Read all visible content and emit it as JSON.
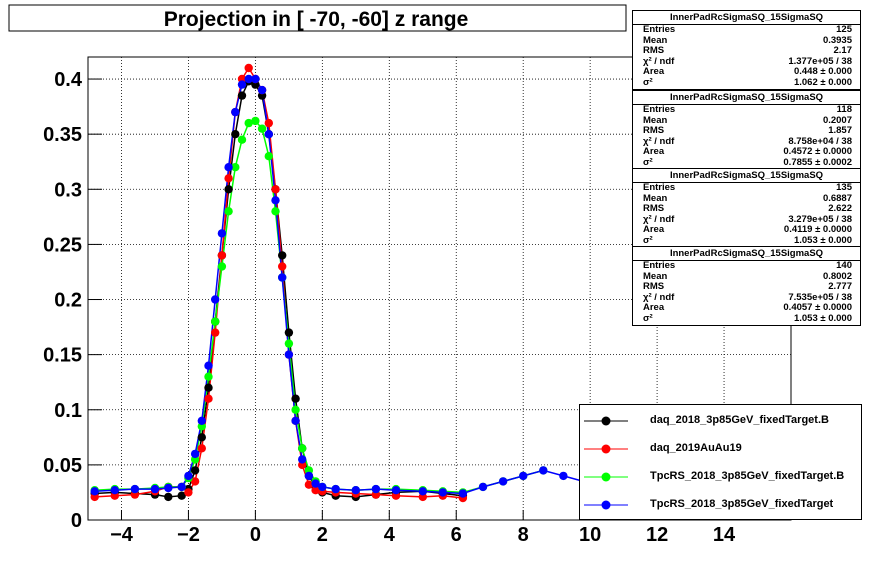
{
  "chart_data": {
    "type": "scatter",
    "title": "Projection in [ -70, -60] z range",
    "xlim": [
      -5,
      16
    ],
    "ylim": [
      0,
      0.42
    ],
    "x_ticks": [
      -4,
      -2,
      0,
      2,
      4,
      6,
      8,
      10,
      12,
      14
    ],
    "y_ticks": [
      0,
      0.05,
      0.1,
      0.15,
      0.2,
      0.25,
      0.3,
      0.35,
      0.4
    ],
    "grid": true,
    "legend_position": "bottom-right",
    "series": [
      {
        "name": "daq_2018_3p85GeV_fixedTarget.B",
        "color": "#000000",
        "x": [
          -4.8,
          -4.2,
          -3.6,
          -3.0,
          -2.6,
          -2.2,
          -2.0,
          -1.8,
          -1.6,
          -1.4,
          -1.2,
          -1.0,
          -0.8,
          -0.6,
          -0.4,
          -0.2,
          0.0,
          0.2,
          0.4,
          0.6,
          0.8,
          1.0,
          1.2,
          1.4,
          1.6,
          1.8,
          2.0,
          2.4,
          3.0,
          3.6,
          4.2,
          5.0,
          5.6,
          6.2
        ],
        "y": [
          0.024,
          0.025,
          0.024,
          0.023,
          0.021,
          0.022,
          0.028,
          0.045,
          0.075,
          0.12,
          0.18,
          0.24,
          0.3,
          0.35,
          0.385,
          0.398,
          0.395,
          0.385,
          0.35,
          0.3,
          0.24,
          0.17,
          0.11,
          0.065,
          0.04,
          0.03,
          0.025,
          0.022,
          0.021,
          0.023,
          0.025,
          0.026,
          0.024,
          0.022
        ]
      },
      {
        "name": "daq_2019AuAu19",
        "color": "#ff0000",
        "x": [
          -4.8,
          -4.2,
          -3.6,
          -3.0,
          -2.6,
          -2.2,
          -2.0,
          -1.8,
          -1.6,
          -1.4,
          -1.2,
          -1.0,
          -0.8,
          -0.6,
          -0.4,
          -0.2,
          0.0,
          0.2,
          0.4,
          0.6,
          0.8,
          1.0,
          1.2,
          1.4,
          1.6,
          1.8,
          2.0,
          2.4,
          3.0,
          3.6,
          4.2,
          5.0,
          5.6,
          6.2
        ],
        "y": [
          0.021,
          0.022,
          0.023,
          0.026,
          0.03,
          0.03,
          0.025,
          0.035,
          0.065,
          0.11,
          0.17,
          0.24,
          0.31,
          0.37,
          0.4,
          0.41,
          0.4,
          0.39,
          0.36,
          0.3,
          0.23,
          0.15,
          0.09,
          0.05,
          0.032,
          0.027,
          0.026,
          0.025,
          0.024,
          0.023,
          0.022,
          0.021,
          0.022,
          0.02
        ]
      },
      {
        "name": "TpcRS_2018_3p85GeV_fixedTarget.B",
        "color": "#00ff00",
        "x": [
          -4.8,
          -4.2,
          -3.6,
          -3.0,
          -2.6,
          -2.2,
          -2.0,
          -1.8,
          -1.6,
          -1.4,
          -1.2,
          -1.0,
          -0.8,
          -0.6,
          -0.4,
          -0.2,
          0.0,
          0.2,
          0.4,
          0.6,
          0.8,
          1.0,
          1.2,
          1.4,
          1.6,
          1.8,
          2.0,
          2.4,
          3.0,
          3.6,
          4.2,
          5.0,
          5.6,
          6.2,
          6.8,
          7.4,
          8.0,
          8.6
        ],
        "y": [
          0.027,
          0.028,
          0.028,
          0.029,
          0.03,
          0.03,
          0.038,
          0.055,
          0.085,
          0.13,
          0.18,
          0.23,
          0.28,
          0.32,
          0.345,
          0.36,
          0.362,
          0.355,
          0.33,
          0.28,
          0.22,
          0.16,
          0.1,
          0.065,
          0.045,
          0.035,
          0.03,
          0.028,
          0.027,
          0.028,
          0.028,
          0.027,
          0.026,
          0.025,
          0.03,
          0.035,
          0.04,
          0.045
        ]
      },
      {
        "name": "TpcRS_2018_3p85GeV_fixedTarget",
        "color": "#0000ff",
        "x": [
          -4.8,
          -4.2,
          -3.6,
          -3.0,
          -2.6,
          -2.2,
          -2.0,
          -1.8,
          -1.6,
          -1.4,
          -1.2,
          -1.0,
          -0.8,
          -0.6,
          -0.4,
          -0.2,
          0.0,
          0.2,
          0.4,
          0.6,
          0.8,
          1.0,
          1.2,
          1.4,
          1.6,
          1.8,
          2.0,
          2.4,
          3.0,
          3.6,
          4.2,
          5.0,
          5.6,
          6.2,
          6.8,
          7.4,
          8.0,
          8.6,
          9.2,
          9.8
        ],
        "y": [
          0.026,
          0.027,
          0.028,
          0.028,
          0.029,
          0.03,
          0.04,
          0.06,
          0.09,
          0.14,
          0.2,
          0.26,
          0.32,
          0.37,
          0.395,
          0.4,
          0.4,
          0.39,
          0.35,
          0.29,
          0.22,
          0.15,
          0.09,
          0.055,
          0.04,
          0.033,
          0.03,
          0.028,
          0.027,
          0.028,
          0.027,
          0.026,
          0.025,
          0.024,
          0.03,
          0.035,
          0.04,
          0.045,
          0.04,
          0.035
        ]
      }
    ]
  },
  "stats": [
    {
      "title": "InnerPadRcSigmaSQ_15SigmaSQ",
      "rows": [
        {
          "label": "Entries",
          "value": "125"
        },
        {
          "label": "Mean",
          "value": "0.3935"
        },
        {
          "label": "RMS",
          "value": "2.17"
        },
        {
          "label": "χ² / ndf",
          "value": "1.377e+05 / 38"
        },
        {
          "label": "Area",
          "value": "0.448 ± 0.000"
        },
        {
          "label": "σ²",
          "value": "1.062 ± 0.000"
        }
      ]
    },
    {
      "title": "InnerPadRcSigmaSQ_15SigmaSQ",
      "rows": [
        {
          "label": "Entries",
          "value": "118"
        },
        {
          "label": "Mean",
          "value": "0.2007"
        },
        {
          "label": "RMS",
          "value": "1.857"
        },
        {
          "label": "χ² / ndf",
          "value": "8.758e+04 / 38"
        },
        {
          "label": "Area",
          "value": "0.4572 ± 0.0000"
        },
        {
          "label": "σ²",
          "value": "0.7855 ± 0.0002"
        }
      ]
    },
    {
      "title": "InnerPadRcSigmaSQ_15SigmaSQ",
      "rows": [
        {
          "label": "Entries",
          "value": "135"
        },
        {
          "label": "Mean",
          "value": "0.6887"
        },
        {
          "label": "RMS",
          "value": "2.622"
        },
        {
          "label": "χ² / ndf",
          "value": "3.279e+05 / 38"
        },
        {
          "label": "Area",
          "value": "0.4119 ± 0.0000"
        },
        {
          "label": "σ²",
          "value": "1.053 ± 0.000"
        }
      ]
    },
    {
      "title": "InnerPadRcSigmaSQ_15SigmaSQ",
      "rows": [
        {
          "label": "Entries",
          "value": "140"
        },
        {
          "label": "Mean",
          "value": "0.8002"
        },
        {
          "label": "RMS",
          "value": "2.777"
        },
        {
          "label": "χ² / ndf",
          "value": "7.535e+05 / 38"
        },
        {
          "label": "Area",
          "value": "0.4057 ± 0.0000"
        },
        {
          "label": "σ²",
          "value": "1.053 ± 0.000"
        }
      ]
    }
  ]
}
